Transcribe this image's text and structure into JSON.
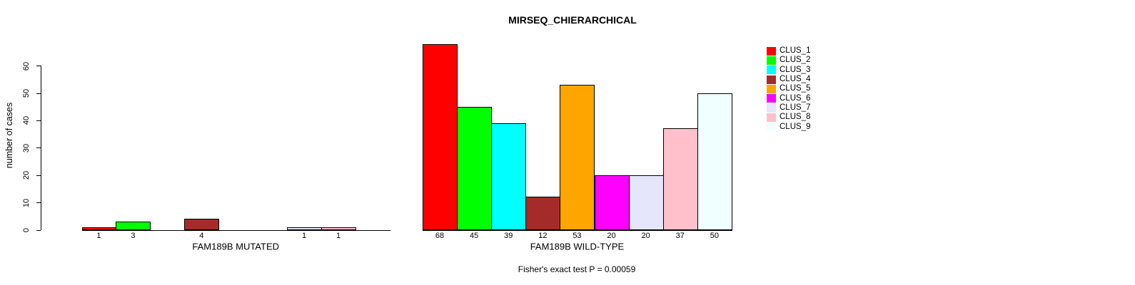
{
  "chart_data": {
    "type": "bar",
    "title": "MIRSEQ_CHIERARCHICAL",
    "ylabel": "number of cases",
    "ylim": [
      0,
      68
    ],
    "yticks": [
      0,
      10,
      20,
      30,
      40,
      50,
      60
    ],
    "grid": false,
    "clusters": [
      "CLUS_1",
      "CLUS_2",
      "CLUS_3",
      "CLUS_4",
      "CLUS_5",
      "CLUS_6",
      "CLUS_7",
      "CLUS_8",
      "CLUS_9"
    ],
    "colors": [
      "#ff0000",
      "#00ff00",
      "#00ffff",
      "#a52a2a",
      "#ffa500",
      "#ff00ff",
      "#e6e6fa",
      "#ffc0cb",
      "#f0ffff"
    ],
    "panels": [
      {
        "xlabel": "FAM189B MUTATED",
        "values": [
          1,
          3,
          0,
          4,
          0,
          0,
          1,
          1,
          0
        ]
      },
      {
        "xlabel": "FAM189B WILD-TYPE",
        "values": [
          68,
          45,
          39,
          12,
          53,
          20,
          20,
          37,
          50
        ]
      }
    ],
    "legend": {
      "position": "right",
      "labels": [
        "CLUS_1",
        "CLUS_2",
        "CLUS_3",
        "CLUS_4",
        "CLUS_5",
        "CLUS_6",
        "CLUS_7",
        "CLUS_8",
        "CLUS_9"
      ]
    },
    "annotation": "Fisher's exact test P = 0.00059"
  }
}
